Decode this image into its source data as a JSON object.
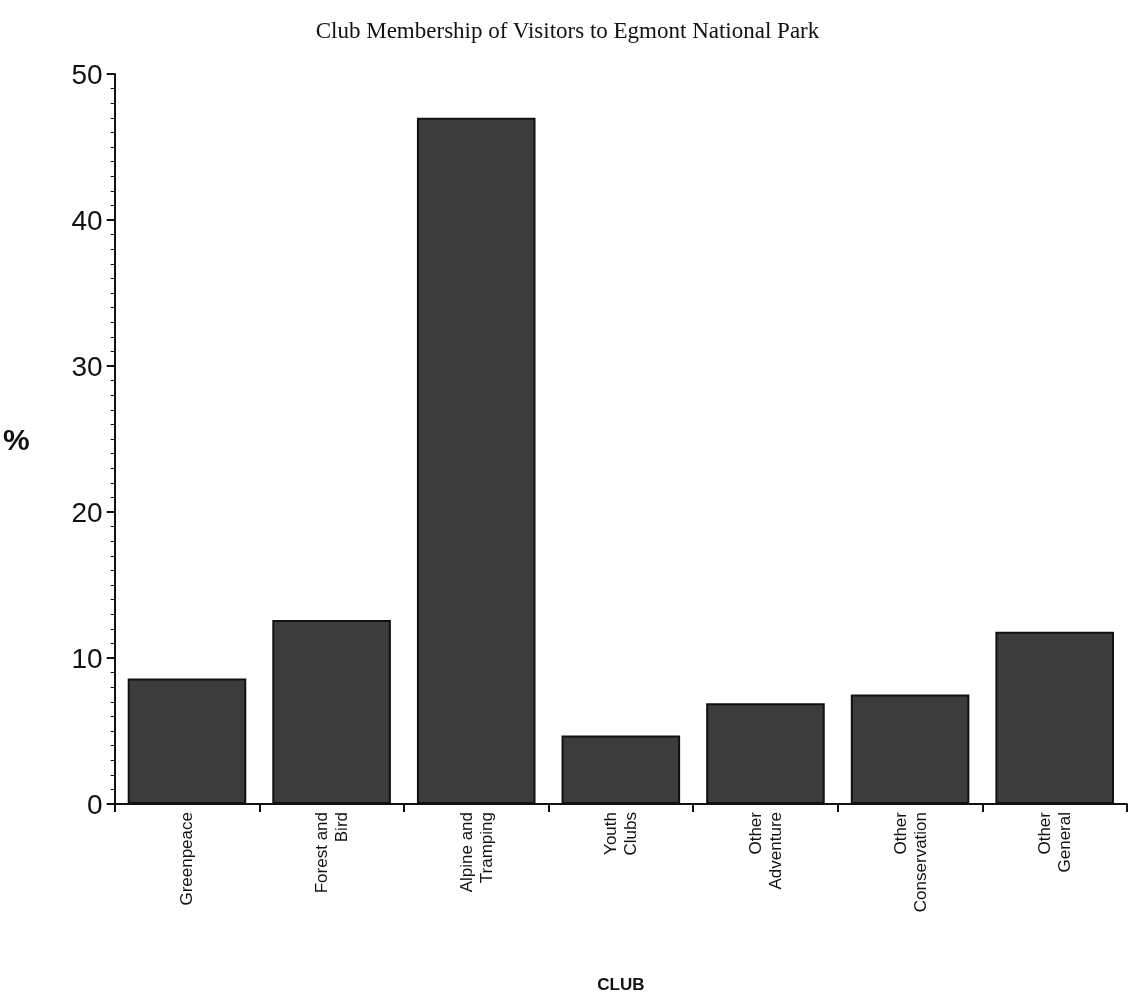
{
  "chart_data": {
    "type": "bar",
    "title": "Club Membership of Visitors to Egmont National Park",
    "xlabel": "CLUB",
    "ylabel": "%",
    "categories": [
      "Greenpeace",
      "Forest and Bird",
      "Alpine and Tramping",
      "Youth Clubs",
      "Other Adventure",
      "Other Conservation",
      "Other General"
    ],
    "values": [
      8.6,
      12.6,
      47.0,
      4.7,
      6.9,
      7.5,
      11.8
    ],
    "color": "#3c3c3c",
    "ylim": [
      0,
      50
    ],
    "yticks": [
      0,
      10,
      20,
      30,
      40,
      50
    ],
    "grid": false
  }
}
